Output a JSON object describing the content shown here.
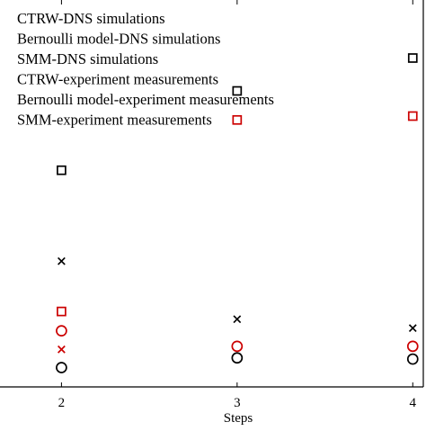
{
  "chart_data": {
    "type": "scatter",
    "xlabel": "Steps",
    "ylabel": "",
    "x_ticks": [
      2,
      3,
      4
    ],
    "xlim": [
      1.65,
      4.06
    ],
    "ylim": [
      0,
      1
    ],
    "legend_position": "top-left",
    "series": [
      {
        "name": "CTRW-DNS simulations",
        "marker": "circle",
        "color": "#000000",
        "points": [
          [
            2,
            0.05
          ],
          [
            3,
            0.075
          ],
          [
            4,
            0.072
          ]
        ]
      },
      {
        "name": "Bernoulli model-DNS simulations",
        "marker": "square",
        "color": "#000000",
        "points": [
          [
            2,
            0.56
          ],
          [
            3,
            0.765
          ],
          [
            4,
            0.85
          ]
        ]
      },
      {
        "name": "SMM-DNS simulations",
        "marker": "x",
        "color": "#000000",
        "points": [
          [
            2,
            0.325
          ],
          [
            3,
            0.175
          ],
          [
            4,
            0.152
          ]
        ]
      },
      {
        "name": "CTRW-experiment measurements",
        "marker": "circle",
        "color": "#cc0000",
        "points": [
          [
            2,
            0.145
          ],
          [
            3,
            0.105
          ],
          [
            4,
            0.105
          ]
        ]
      },
      {
        "name": "Bernoulli model-experiment measurements",
        "marker": "square",
        "color": "#cc0000",
        "points": [
          [
            2,
            0.195
          ],
          [
            3,
            0.69
          ],
          [
            4,
            0.7
          ]
        ]
      },
      {
        "name": "SMM-experiment measurements",
        "marker": "x",
        "color": "#cc0000",
        "points": [
          [
            2,
            0.097
          ]
        ]
      }
    ]
  }
}
